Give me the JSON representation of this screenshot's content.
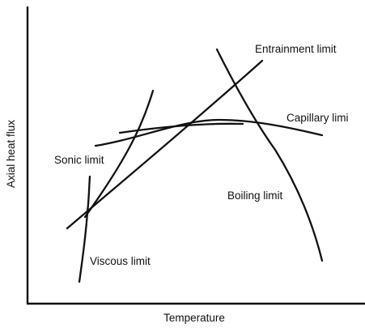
{
  "chart_data": {
    "type": "line",
    "title": "",
    "xlabel": "Temperature",
    "ylabel": "Axial heat flux",
    "x_ticks": false,
    "y_ticks": false,
    "grid": false,
    "series": [
      {
        "name": "Viscous limit"
      },
      {
        "name": "Sonic limit"
      },
      {
        "name": "Entrainment limit"
      },
      {
        "name": "Capillary limi"
      },
      {
        "name": "Boiling limit"
      }
    ]
  }
}
